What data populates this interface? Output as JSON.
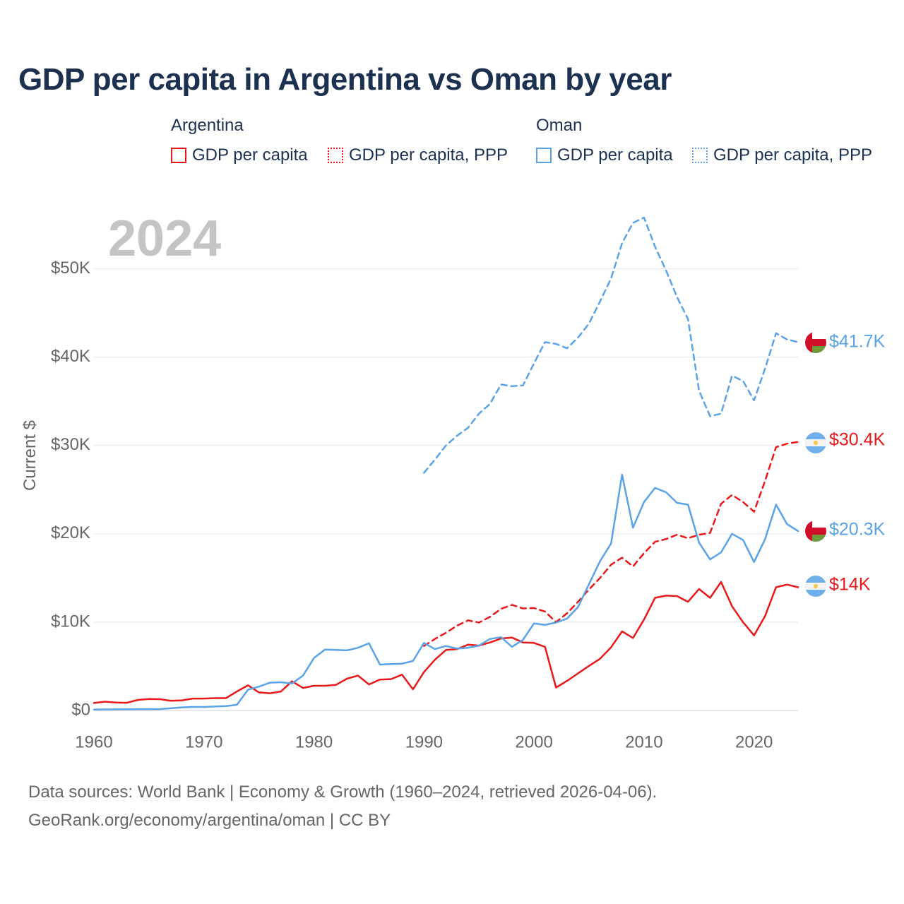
{
  "title": "GDP per capita in Argentina vs Oman by year",
  "legend": {
    "argentina": {
      "label": "Argentina",
      "items": [
        {
          "label": "GDP per capita",
          "color": "#e8191a",
          "style": "solid"
        },
        {
          "label": "GDP per capita, PPP",
          "color": "#e8191a",
          "style": "dotted"
        }
      ]
    },
    "oman": {
      "label": "Oman",
      "items": [
        {
          "label": "GDP per capita",
          "color": "#5aa3e6",
          "style": "solid"
        },
        {
          "label": "GDP per capita, PPP",
          "color": "#5aa3e6",
          "style": "dotted"
        }
      ]
    }
  },
  "year_watermark": "2024",
  "footer": {
    "line1": "Data sources: World Bank | Economy & Growth (1960–2024, retrieved 2026-04-06).",
    "line2": "GeoRank.org/economy/argentina/oman | CC BY"
  },
  "chart_data": {
    "type": "line",
    "title": "GDP per capita in Argentina vs Oman by year",
    "xlabel": "",
    "ylabel": "Current $",
    "xlim": [
      1960,
      2024
    ],
    "ylim": [
      0,
      55000
    ],
    "x_ticks": [
      1960,
      1970,
      1980,
      1990,
      2000,
      2010,
      2020
    ],
    "x_tick_labels": [
      "1960",
      "1970",
      "1980",
      "1990",
      "2000",
      "2010",
      "2020"
    ],
    "y_ticks": [
      0,
      10000,
      20000,
      30000,
      40000,
      50000
    ],
    "y_tick_labels": [
      "$0",
      "$10K",
      "$20K",
      "$30K",
      "$40K",
      "$50K"
    ],
    "grid": true,
    "series": [
      {
        "name": "Argentina GDP per capita",
        "color": "#e8191a",
        "dash": "solid",
        "end_label": "$14K",
        "flag": "argentina",
        "x": [
          1960,
          1961,
          1962,
          1963,
          1964,
          1965,
          1966,
          1967,
          1968,
          1969,
          1970,
          1971,
          1972,
          1973,
          1974,
          1975,
          1976,
          1977,
          1978,
          1979,
          1980,
          1981,
          1982,
          1983,
          1984,
          1985,
          1986,
          1987,
          1988,
          1989,
          1990,
          1991,
          1992,
          1993,
          1994,
          1995,
          1996,
          1997,
          1998,
          1999,
          2000,
          2001,
          2002,
          2003,
          2004,
          2005,
          2006,
          2007,
          2008,
          2009,
          2010,
          2011,
          2012,
          2013,
          2014,
          2015,
          2016,
          2017,
          2018,
          2019,
          2020,
          2021,
          2022,
          2023,
          2024
        ],
        "values": [
          850,
          1000,
          900,
          870,
          1200,
          1300,
          1280,
          1100,
          1150,
          1350,
          1350,
          1400,
          1400,
          2150,
          2850,
          2050,
          1950,
          2150,
          3300,
          2550,
          2800,
          2800,
          2900,
          3600,
          3950,
          2950,
          3500,
          3550,
          4050,
          2400,
          4350,
          5750,
          6850,
          6950,
          7450,
          7350,
          7700,
          8150,
          8250,
          7700,
          7650,
          7200,
          2600,
          3350,
          4200,
          5050,
          5850,
          7150,
          8950,
          8200,
          10300,
          12750,
          13000,
          12950,
          12300,
          13750,
          12750,
          14550,
          11800,
          10000,
          8500,
          10700,
          13950,
          14250,
          13950
        ]
      },
      {
        "name": "Argentina GDP per capita, PPP",
        "color": "#e8191a",
        "dash": "dashed",
        "end_label": "$30.4K",
        "flag": "argentina",
        "x": [
          1990,
          1991,
          1992,
          1993,
          1994,
          1995,
          1996,
          1997,
          1998,
          1999,
          2000,
          2001,
          2002,
          2003,
          2004,
          2005,
          2006,
          2007,
          2008,
          2009,
          2010,
          2011,
          2012,
          2013,
          2014,
          2015,
          2016,
          2017,
          2018,
          2019,
          2020,
          2021,
          2022,
          2023,
          2024
        ],
        "values": [
          7300,
          8100,
          8800,
          9600,
          10200,
          9950,
          10600,
          11500,
          11950,
          11550,
          11600,
          11200,
          10000,
          11000,
          12300,
          13700,
          15000,
          16500,
          17300,
          16300,
          17800,
          19100,
          19400,
          19900,
          19500,
          19900,
          20100,
          23400,
          24400,
          23600,
          22500,
          26000,
          29800,
          30200,
          30400
        ]
      },
      {
        "name": "Oman GDP per capita",
        "color": "#5aa3e6",
        "dash": "solid",
        "end_label": "$20.3K",
        "flag": "oman",
        "x": [
          1960,
          1961,
          1962,
          1963,
          1964,
          1965,
          1966,
          1967,
          1968,
          1969,
          1970,
          1971,
          1972,
          1973,
          1974,
          1975,
          1976,
          1977,
          1978,
          1979,
          1980,
          1981,
          1982,
          1983,
          1984,
          1985,
          1986,
          1987,
          1988,
          1989,
          1990,
          1991,
          1992,
          1993,
          1994,
          1995,
          1996,
          1997,
          1998,
          1999,
          2000,
          2001,
          2002,
          2003,
          2004,
          2005,
          2006,
          2007,
          2008,
          2009,
          2010,
          2011,
          2012,
          2013,
          2014,
          2015,
          2016,
          2017,
          2018,
          2019,
          2020,
          2021,
          2022,
          2023,
          2024
        ],
        "values": [
          100,
          120,
          130,
          140,
          150,
          150,
          160,
          250,
          350,
          400,
          400,
          450,
          500,
          650,
          2350,
          2700,
          3150,
          3200,
          3050,
          3950,
          5950,
          6900,
          6850,
          6800,
          7100,
          7600,
          5200,
          5250,
          5300,
          5600,
          7650,
          6950,
          7300,
          7000,
          7100,
          7350,
          8100,
          8300,
          7200,
          8000,
          9850,
          9700,
          9950,
          10400,
          11700,
          14300,
          16900,
          18900,
          26700,
          20700,
          23600,
          25200,
          24700,
          23500,
          23300,
          19000,
          17100,
          17900,
          20000,
          19300,
          16800,
          19400,
          23300,
          21100,
          20300
        ]
      },
      {
        "name": "Oman GDP per capita, PPP",
        "color": "#5aa3e6",
        "dash": "dashed",
        "end_label": "$41.7K",
        "flag": "oman",
        "x": [
          1990,
          1991,
          1992,
          1993,
          1994,
          1995,
          1996,
          1997,
          1998,
          1999,
          2000,
          2001,
          2002,
          2003,
          2004,
          2005,
          2006,
          2007,
          2008,
          2009,
          2010,
          2011,
          2012,
          2013,
          2014,
          2015,
          2016,
          2017,
          2018,
          2019,
          2020,
          2021,
          2022,
          2023,
          2024
        ],
        "values": [
          26900,
          28400,
          30000,
          31100,
          32000,
          33600,
          34700,
          36900,
          36700,
          36800,
          39300,
          41700,
          41500,
          41000,
          42200,
          43800,
          46300,
          48900,
          52900,
          55200,
          55800,
          52500,
          49800,
          46800,
          44300,
          36200,
          33300,
          33600,
          37900,
          37300,
          35100,
          38700,
          42700,
          42000,
          41700
        ]
      }
    ]
  }
}
